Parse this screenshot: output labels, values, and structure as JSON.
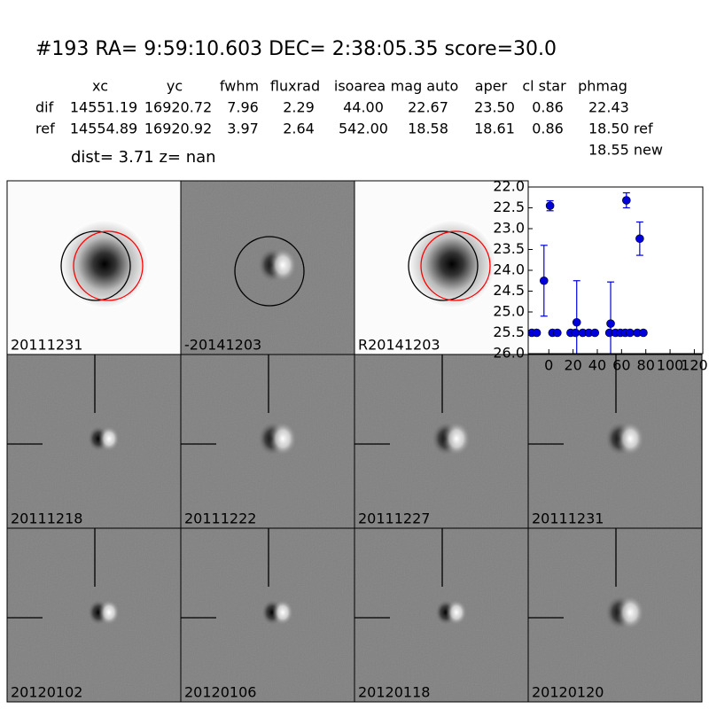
{
  "header": {
    "title": "#193   RA= 9:59:10.603 DEC= 2:38:05.35       score=30.0"
  },
  "table": {
    "columns": [
      "xc",
      "yc",
      "fwhm",
      "fluxrad",
      "isoarea",
      "mag auto",
      "aper",
      "cl star",
      "phmag"
    ],
    "rows": [
      [
        "dif",
        "14551.19",
        "16920.72",
        "7.96",
        "2.29",
        "44.00",
        "22.67",
        "23.50",
        "0.86",
        "22.43"
      ],
      [
        "ref",
        "14554.89",
        "16920.92",
        "3.97",
        "2.64",
        "542.00",
        "18.58",
        "18.61",
        "0.86",
        "18.50 ref"
      ]
    ],
    "extra": "18.55 new"
  },
  "dist_line": "dist=  3.71       z=   nan",
  "stamps": [
    {
      "label": "20111231"
    },
    {
      "label": "-20141203"
    },
    {
      "label": "R20141203"
    },
    {
      "label": "20111218"
    },
    {
      "label": "20111222"
    },
    {
      "label": "20111227"
    },
    {
      "label": "20111231",
      "color": "#ff0000"
    },
    {
      "label": "20120102"
    },
    {
      "label": "20120106"
    },
    {
      "label": "20120118"
    },
    {
      "label": "20120120"
    }
  ],
  "chart_data": {
    "type": "errorbar",
    "color": "#0000dd",
    "x": [
      -14,
      -10,
      -4,
      1,
      3,
      7,
      18,
      22,
      23,
      28,
      33,
      38,
      50,
      51,
      55,
      59,
      63,
      64,
      67,
      73,
      75,
      78
    ],
    "values": [
      25.5,
      25.5,
      24.25,
      22.45,
      25.5,
      25.5,
      25.5,
      25.5,
      25.25,
      25.5,
      25.5,
      25.5,
      25.5,
      25.28,
      25.5,
      25.5,
      25.5,
      22.32,
      25.5,
      25.5,
      23.24,
      25.5
    ],
    "errors": [
      null,
      null,
      0.85,
      0.12,
      null,
      null,
      null,
      null,
      1.0,
      null,
      null,
      null,
      null,
      1.0,
      null,
      null,
      null,
      0.18,
      null,
      null,
      0.4,
      null
    ],
    "xlim": [
      -17,
      127
    ],
    "ylim": [
      22,
      26
    ],
    "y_inverted": true,
    "xticks": [
      0,
      20,
      40,
      60,
      80,
      100,
      120
    ],
    "yticks": [
      {
        "value": 22,
        "label": "22.0"
      },
      {
        "value": 22.5,
        "label": "22.5"
      },
      {
        "value": 23,
        "label": "23.0"
      },
      {
        "value": 23.5,
        "label": "23.5"
      },
      {
        "value": 24,
        "label": "24.0"
      },
      {
        "value": 24.5,
        "label": "24.5"
      },
      {
        "value": 25,
        "label": "25.0"
      },
      {
        "value": 25.5,
        "label": "25.5"
      },
      {
        "value": 26,
        "label": "26.0"
      }
    ]
  }
}
